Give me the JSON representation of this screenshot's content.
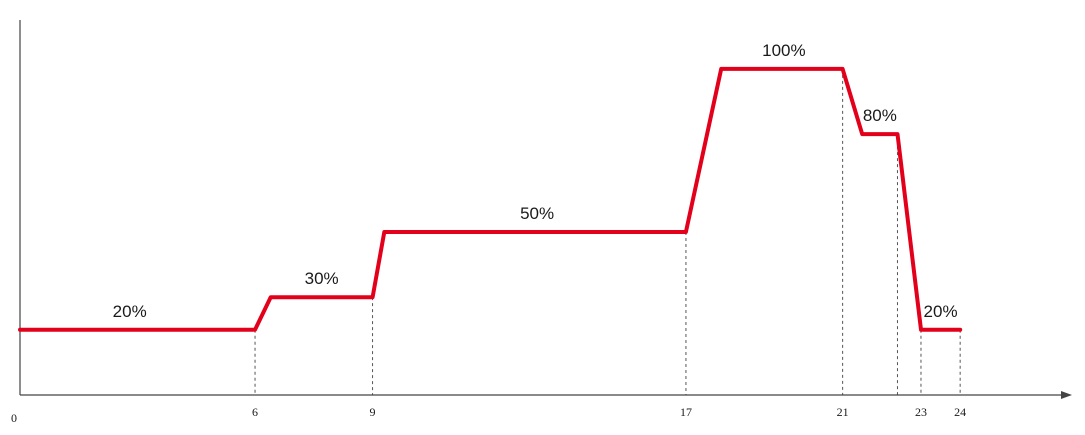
{
  "chart_data": {
    "type": "line",
    "title": "",
    "xlabel": "",
    "ylabel": "",
    "xlim": [
      0,
      26.6
    ],
    "ylim": [
      0,
      115
    ],
    "grid": false,
    "line_color": "#e3001b",
    "axis_color": "#444444",
    "x_ticks": [
      {
        "value": 0,
        "label": "0"
      },
      {
        "value": 6,
        "label": "6"
      },
      {
        "value": 9,
        "label": "9"
      },
      {
        "value": 17,
        "label": "17"
      },
      {
        "value": 21,
        "label": "21"
      },
      {
        "value": 23,
        "label": "23"
      },
      {
        "value": 24,
        "label": "24"
      }
    ],
    "series": [
      {
        "x": [
          0,
          6,
          6.4,
          9,
          9.3,
          17,
          17.9,
          21,
          21.5,
          22.4,
          23,
          24
        ],
        "y": [
          20,
          20,
          30,
          30,
          50,
          50,
          100,
          100,
          80,
          80,
          20,
          20
        ]
      }
    ],
    "segment_labels": [
      {
        "text": "20%",
        "x": 2.8,
        "y": 20
      },
      {
        "text": "30%",
        "x": 7.7,
        "y": 30
      },
      {
        "text": "50%",
        "x": 13.2,
        "y": 50
      },
      {
        "text": "100%",
        "x": 19.5,
        "y": 100
      },
      {
        "text": "80%",
        "x": 21.95,
        "y": 80
      },
      {
        "text": "20%",
        "x": 23.5,
        "y": 20
      }
    ],
    "dashed_guides": [
      {
        "x": 6,
        "y": 20
      },
      {
        "x": 9,
        "y": 30
      },
      {
        "x": 17,
        "y": 50
      },
      {
        "x": 21,
        "y": 100
      },
      {
        "x": 22.4,
        "y": 80
      },
      {
        "x": 23,
        "y": 20
      },
      {
        "x": 24,
        "y": 20
      }
    ]
  }
}
